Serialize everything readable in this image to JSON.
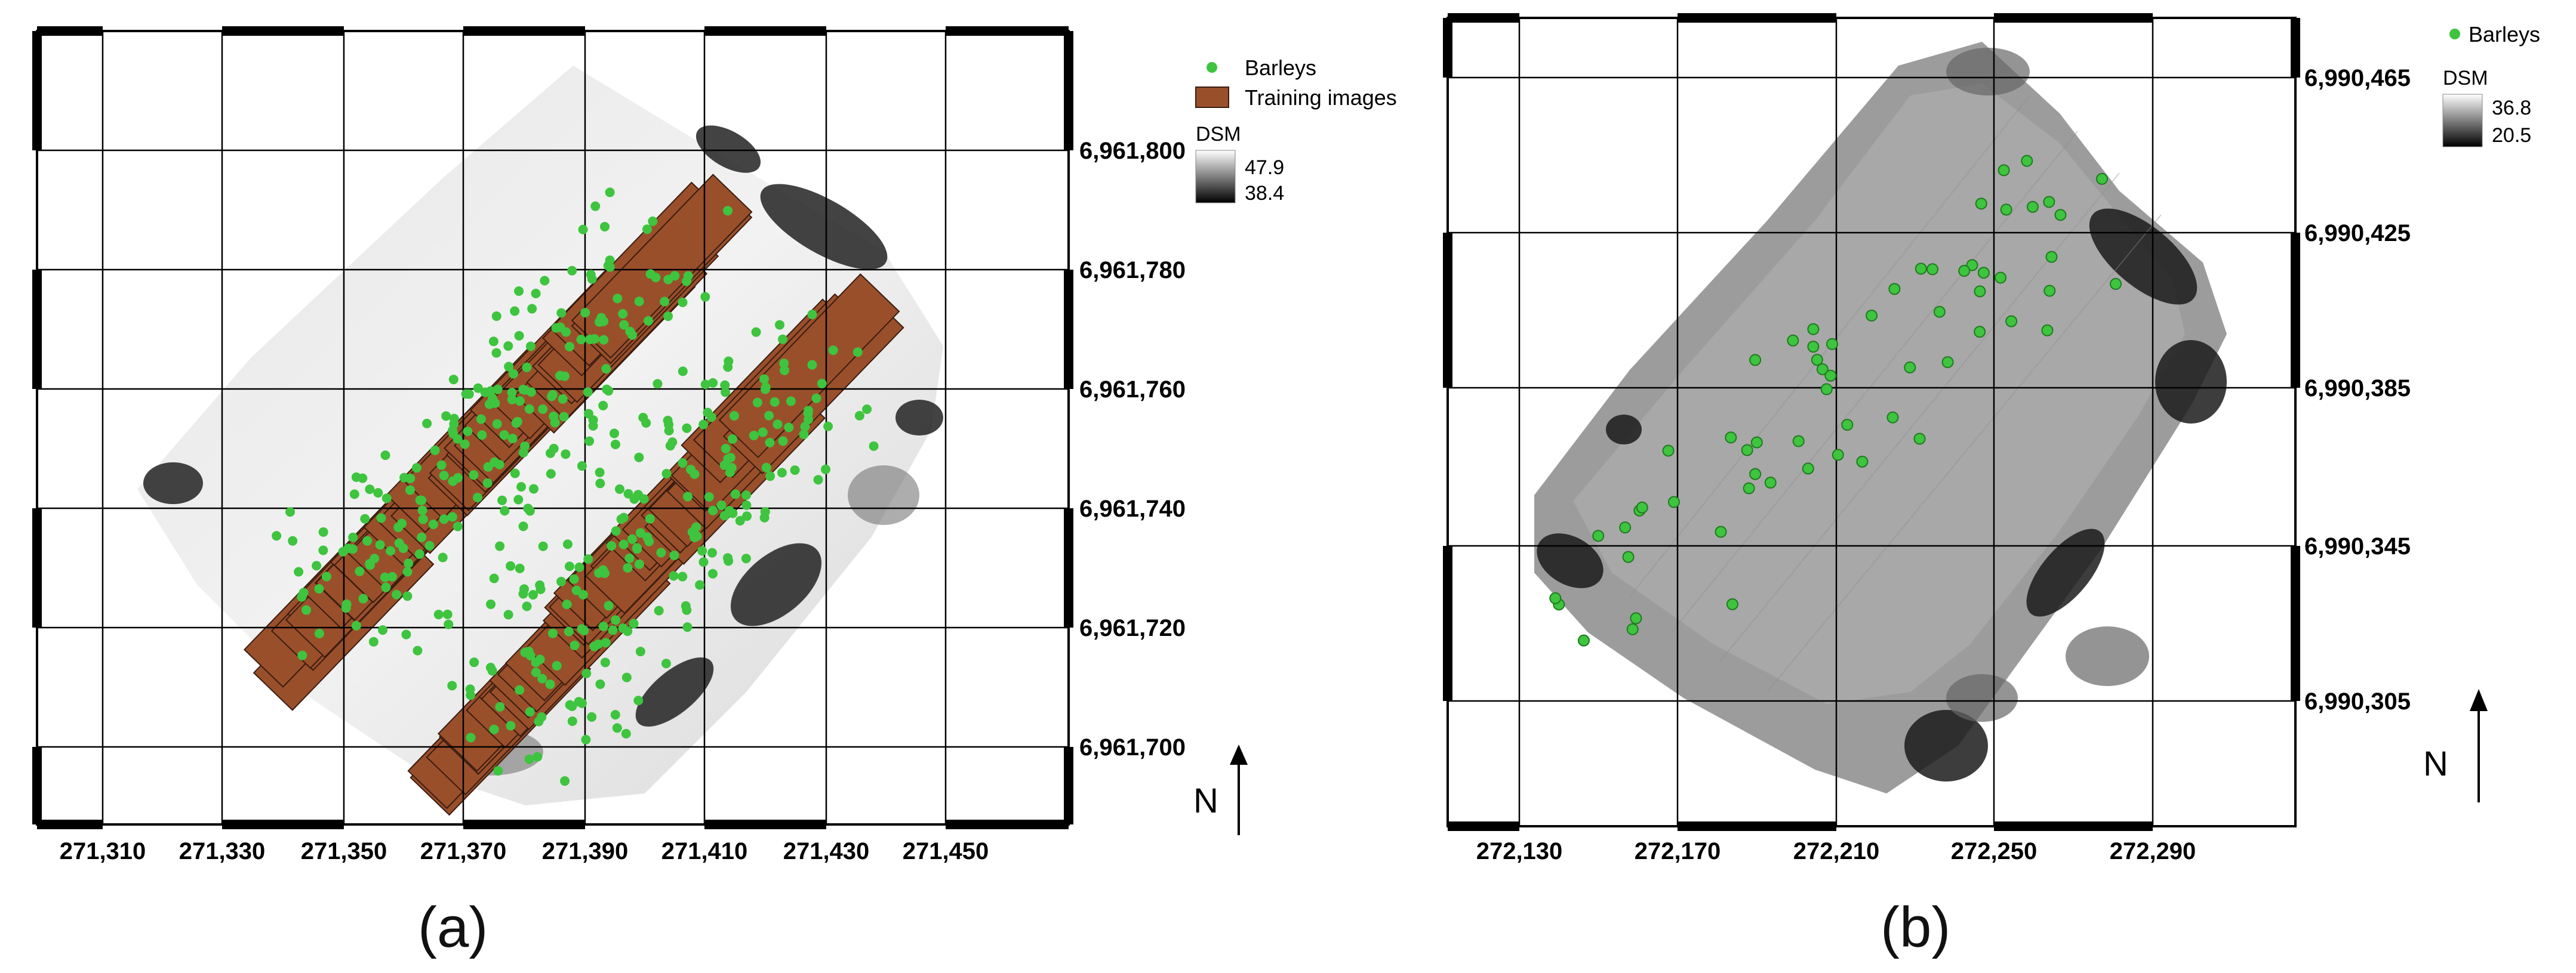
{
  "panels": [
    {
      "id": "a",
      "label": "(a)",
      "legend": {
        "barleys_label": "Barleys",
        "training_label": "Training images",
        "dsm_title": "DSM",
        "dsm_max": "47.9",
        "dsm_min": "38.4"
      },
      "x_ticks": [
        "271,310",
        "271,330",
        "271,350",
        "271,370",
        "271,390",
        "271,410",
        "271,430",
        "271,450"
      ],
      "y_ticks": [
        "6,961,800",
        "6,961,780",
        "6,961,760",
        "6,961,740",
        "6,961,720",
        "6,961,700"
      ],
      "north_label": "N",
      "colors": {
        "barley": "#3ec43e",
        "training": "#9a4f2b",
        "training_outline": "#3a1d10"
      }
    },
    {
      "id": "b",
      "label": "(b)",
      "legend": {
        "barleys_label": "Barleys",
        "dsm_title": "DSM",
        "dsm_max": "36.8",
        "dsm_min": "20.5"
      },
      "x_ticks": [
        "272,130",
        "272,170",
        "272,210",
        "272,250",
        "272,290"
      ],
      "y_ticks": [
        "6,990,465",
        "6,990,425",
        "6,990,385",
        "6,990,345",
        "6,990,305"
      ],
      "north_label": "N",
      "colors": {
        "barley": "#3ec43e",
        "barley_outline": "#1f7a1f"
      }
    }
  ]
}
